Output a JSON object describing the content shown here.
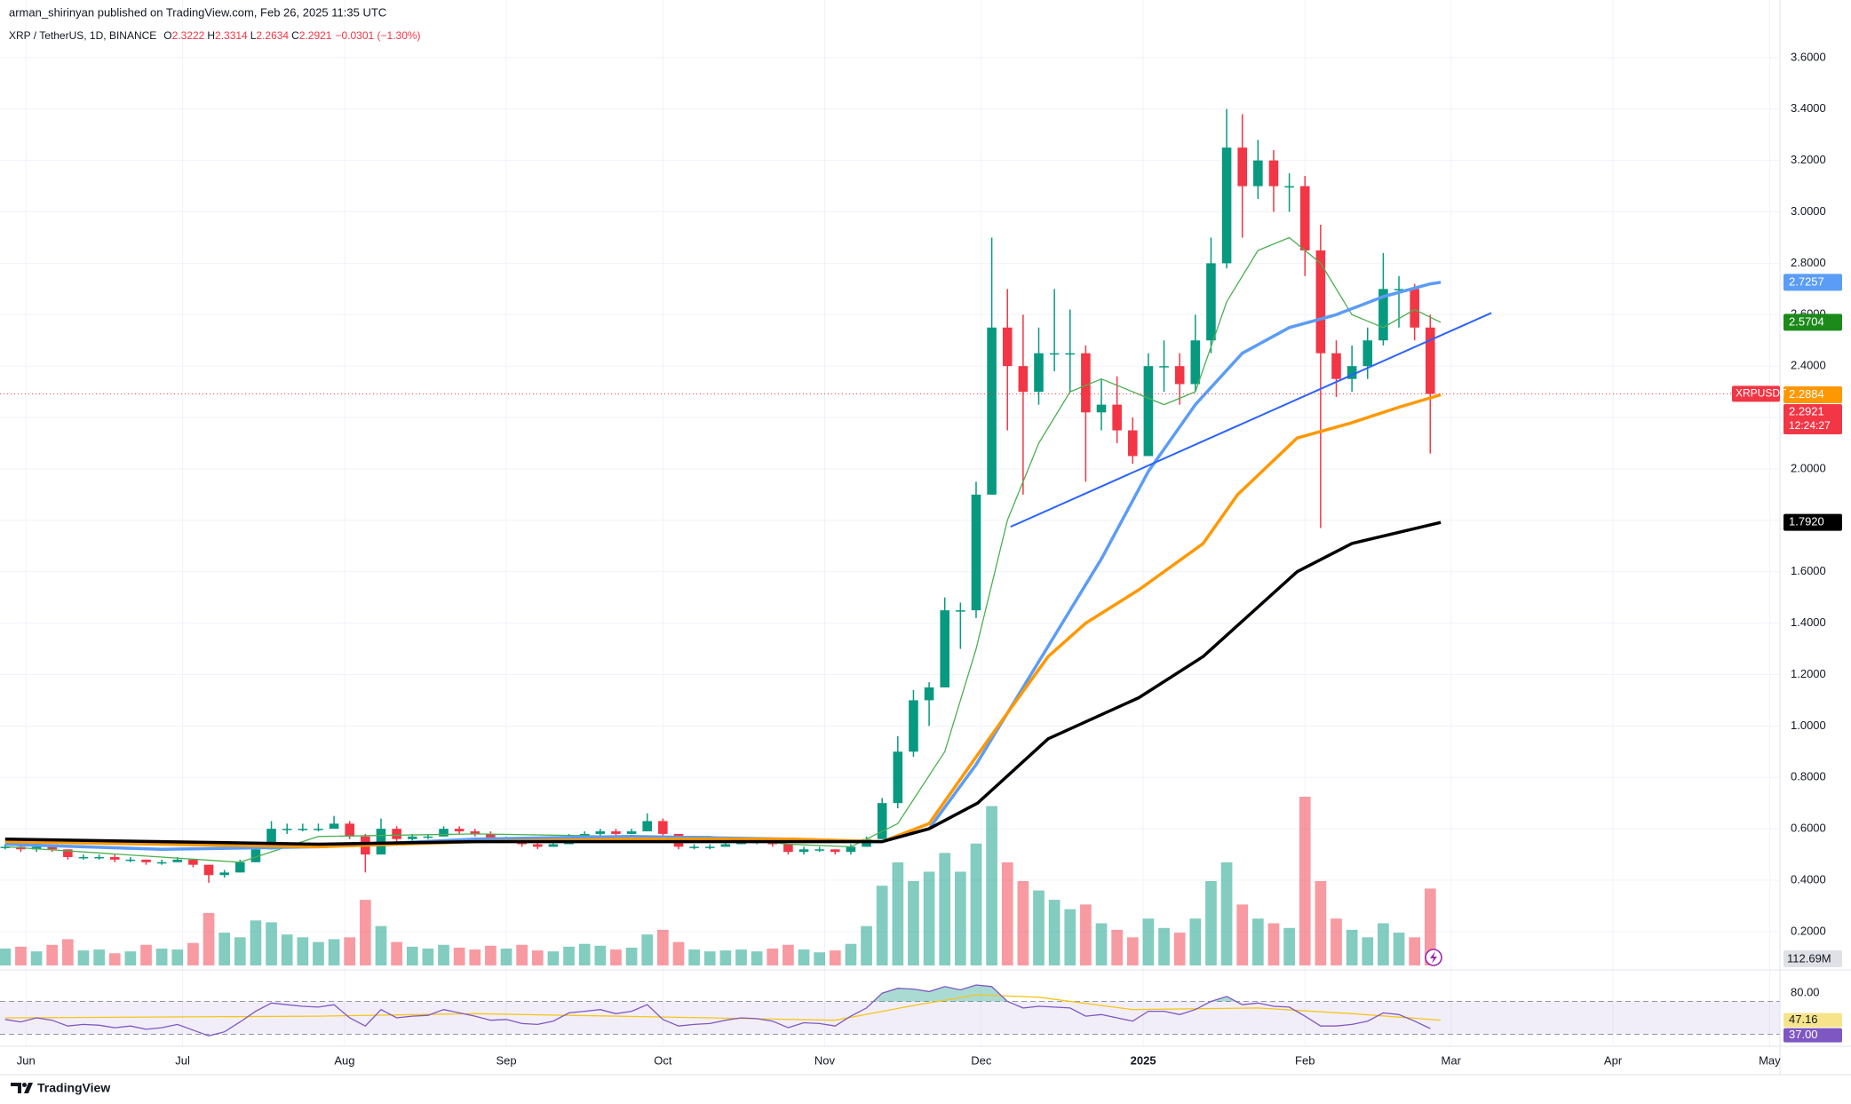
{
  "header": {
    "publisher_line": "arman_shirinyan published on TradingView.com, Feb 26, 2025 11:35 UTC"
  },
  "chart_data": {
    "type": "candlestick",
    "symbol_line": "XRP / TetherUS, 1D, BINANCE",
    "ohlc_legend": [
      {
        "label": "O",
        "value": "2.3222"
      },
      {
        "label": "H",
        "value": "2.3314"
      },
      {
        "label": "L",
        "value": "2.2634"
      },
      {
        "label": "C",
        "value": "2.2921"
      }
    ],
    "change": "−0.0301 (−1.30%)",
    "xlim": [
      -0.33,
      113.33
    ],
    "xticks": [
      {
        "value": 1.33,
        "label": "Jun"
      },
      {
        "value": 11.33,
        "label": "Jul"
      },
      {
        "value": 21.67,
        "label": "Aug"
      },
      {
        "value": 32,
        "label": "Sep"
      },
      {
        "value": 42,
        "label": "Oct"
      },
      {
        "value": 52.33,
        "label": "Nov"
      },
      {
        "value": 62.33,
        "label": "Dec"
      },
      {
        "value": 72.67,
        "label": "2025"
      },
      {
        "value": 83,
        "label": "Feb"
      },
      {
        "value": 92.33,
        "label": "Mar"
      },
      {
        "value": 102.67,
        "label": "Apr"
      },
      {
        "value": 112.67,
        "label": "May"
      }
    ],
    "ylim": [
      0.058,
      3.686
    ],
    "yticks": [
      {
        "value": 0.2,
        "label": "0.2000"
      },
      {
        "value": 0.4,
        "label": "0.4000"
      },
      {
        "value": 0.6,
        "label": "0.6000"
      },
      {
        "value": 0.8,
        "label": "0.8000"
      },
      {
        "value": 1.0,
        "label": "1.0000"
      },
      {
        "value": 1.2,
        "label": "1.2000"
      },
      {
        "value": 1.4,
        "label": "1.4000"
      },
      {
        "value": 1.6,
        "label": "1.6000"
      },
      {
        "value": 1.8,
        "label": "1.8000"
      },
      {
        "value": 2.0,
        "label": "2.0000"
      },
      {
        "value": 2.2,
        "label": "2.2000"
      },
      {
        "value": 2.4,
        "label": "2.4000"
      },
      {
        "value": 2.6,
        "label": "2.6000"
      },
      {
        "value": 2.8,
        "label": "2.8000"
      },
      {
        "value": 3.0,
        "label": "3.0000"
      },
      {
        "value": 3.2,
        "label": "3.2000"
      },
      {
        "value": 3.4,
        "label": "3.4000"
      },
      {
        "value": 3.6,
        "label": "3.6000"
      }
    ],
    "grid": true,
    "up_color": "#089981",
    "down_color": "#f23645",
    "candles": [
      [
        0.53,
        0.54,
        0.52,
        0.53
      ],
      [
        0.53,
        0.54,
        0.51,
        0.52
      ],
      [
        0.52,
        0.54,
        0.51,
        0.53
      ],
      [
        0.53,
        0.54,
        0.51,
        0.52
      ],
      [
        0.52,
        0.52,
        0.48,
        0.49
      ],
      [
        0.49,
        0.5,
        0.48,
        0.49
      ],
      [
        0.49,
        0.5,
        0.48,
        0.49
      ],
      [
        0.49,
        0.5,
        0.47,
        0.48
      ],
      [
        0.48,
        0.49,
        0.47,
        0.48
      ],
      [
        0.48,
        0.48,
        0.46,
        0.47
      ],
      [
        0.47,
        0.48,
        0.46,
        0.47
      ],
      [
        0.47,
        0.49,
        0.47,
        0.48
      ],
      [
        0.48,
        0.48,
        0.45,
        0.46
      ],
      [
        0.46,
        0.46,
        0.39,
        0.42
      ],
      [
        0.42,
        0.44,
        0.41,
        0.43
      ],
      [
        0.43,
        0.48,
        0.43,
        0.47
      ],
      [
        0.47,
        0.53,
        0.47,
        0.52
      ],
      [
        0.52,
        0.63,
        0.52,
        0.6
      ],
      [
        0.6,
        0.62,
        0.58,
        0.6
      ],
      [
        0.6,
        0.62,
        0.59,
        0.6
      ],
      [
        0.6,
        0.62,
        0.59,
        0.6
      ],
      [
        0.6,
        0.65,
        0.6,
        0.62
      ],
      [
        0.62,
        0.63,
        0.56,
        0.57
      ],
      [
        0.57,
        0.58,
        0.43,
        0.5
      ],
      [
        0.5,
        0.64,
        0.5,
        0.6
      ],
      [
        0.6,
        0.61,
        0.55,
        0.56
      ],
      [
        0.56,
        0.58,
        0.55,
        0.57
      ],
      [
        0.57,
        0.58,
        0.56,
        0.57
      ],
      [
        0.57,
        0.61,
        0.57,
        0.6
      ],
      [
        0.6,
        0.61,
        0.58,
        0.59
      ],
      [
        0.59,
        0.6,
        0.57,
        0.58
      ],
      [
        0.58,
        0.59,
        0.55,
        0.56
      ],
      [
        0.56,
        0.57,
        0.55,
        0.56
      ],
      [
        0.56,
        0.56,
        0.53,
        0.54
      ],
      [
        0.54,
        0.55,
        0.52,
        0.53
      ],
      [
        0.53,
        0.55,
        0.53,
        0.54
      ],
      [
        0.54,
        0.58,
        0.54,
        0.57
      ],
      [
        0.57,
        0.59,
        0.56,
        0.58
      ],
      [
        0.58,
        0.6,
        0.57,
        0.59
      ],
      [
        0.59,
        0.6,
        0.57,
        0.58
      ],
      [
        0.58,
        0.6,
        0.58,
        0.59
      ],
      [
        0.59,
        0.66,
        0.59,
        0.63
      ],
      [
        0.63,
        0.64,
        0.57,
        0.58
      ],
      [
        0.58,
        0.58,
        0.52,
        0.53
      ],
      [
        0.53,
        0.54,
        0.52,
        0.53
      ],
      [
        0.53,
        0.54,
        0.52,
        0.53
      ],
      [
        0.53,
        0.55,
        0.53,
        0.54
      ],
      [
        0.54,
        0.56,
        0.54,
        0.55
      ],
      [
        0.55,
        0.56,
        0.54,
        0.55
      ],
      [
        0.55,
        0.55,
        0.53,
        0.54
      ],
      [
        0.54,
        0.54,
        0.5,
        0.51
      ],
      [
        0.51,
        0.53,
        0.5,
        0.52
      ],
      [
        0.52,
        0.53,
        0.51,
        0.52
      ],
      [
        0.52,
        0.52,
        0.5,
        0.51
      ],
      [
        0.51,
        0.54,
        0.5,
        0.53
      ],
      [
        0.53,
        0.57,
        0.53,
        0.56
      ],
      [
        0.56,
        0.72,
        0.56,
        0.7
      ],
      [
        0.7,
        0.96,
        0.68,
        0.9
      ],
      [
        0.9,
        1.14,
        0.88,
        1.1
      ],
      [
        1.1,
        1.17,
        1.0,
        1.15
      ],
      [
        1.15,
        1.5,
        1.15,
        1.45
      ],
      [
        1.45,
        1.48,
        1.3,
        1.45
      ],
      [
        1.45,
        1.95,
        1.42,
        1.9
      ],
      [
        1.9,
        2.9,
        1.9,
        2.55
      ],
      [
        2.55,
        2.7,
        2.15,
        2.4
      ],
      [
        2.4,
        2.6,
        1.9,
        2.3
      ],
      [
        2.3,
        2.55,
        2.25,
        2.45
      ],
      [
        2.45,
        2.7,
        2.38,
        2.45
      ],
      [
        2.45,
        2.62,
        2.3,
        2.45
      ],
      [
        2.45,
        2.48,
        1.95,
        2.22
      ],
      [
        2.22,
        2.35,
        2.15,
        2.25
      ],
      [
        2.25,
        2.36,
        2.1,
        2.15
      ],
      [
        2.15,
        2.2,
        2.02,
        2.05
      ],
      [
        2.05,
        2.45,
        2.05,
        2.4
      ],
      [
        2.4,
        2.5,
        2.3,
        2.4
      ],
      [
        2.4,
        2.45,
        2.25,
        2.33
      ],
      [
        2.33,
        2.6,
        2.3,
        2.5
      ],
      [
        2.5,
        2.9,
        2.45,
        2.8
      ],
      [
        2.8,
        3.4,
        2.78,
        3.25
      ],
      [
        3.25,
        3.38,
        2.9,
        3.1
      ],
      [
        3.1,
        3.28,
        3.05,
        3.2
      ],
      [
        3.2,
        3.24,
        3.0,
        3.1
      ],
      [
        3.1,
        3.15,
        3.0,
        3.1
      ],
      [
        3.1,
        3.14,
        2.75,
        2.85
      ],
      [
        2.85,
        2.95,
        1.77,
        2.45
      ],
      [
        2.45,
        2.5,
        2.28,
        2.35
      ],
      [
        2.35,
        2.48,
        2.3,
        2.4
      ],
      [
        2.4,
        2.55,
        2.35,
        2.5
      ],
      [
        2.5,
        2.84,
        2.48,
        2.7
      ],
      [
        2.7,
        2.75,
        2.55,
        2.7
      ],
      [
        2.7,
        2.72,
        2.5,
        2.55
      ],
      [
        2.55,
        2.6,
        2.06,
        2.2921
      ]
    ],
    "volume": {
      "values": [
        180,
        200,
        150,
        220,
        280,
        160,
        170,
        130,
        150,
        220,
        180,
        170,
        240,
        560,
        350,
        300,
        480,
        460,
        330,
        300,
        250,
        280,
        300,
        700,
        420,
        250,
        200,
        180,
        220,
        190,
        170,
        210,
        180,
        220,
        160,
        150,
        200,
        230,
        210,
        170,
        190,
        330,
        380,
        250,
        170,
        150,
        160,
        170,
        150,
        180,
        220,
        170,
        140,
        160,
        230,
        420,
        850,
        1100,
        900,
        1000,
        1200,
        1000,
        1300,
        1700,
        1100,
        900,
        800,
        700,
        600,
        650,
        450,
        380,
        300,
        500,
        400,
        350,
        500,
        900,
        1100,
        650,
        500,
        450,
        400,
        1800,
        900,
        500,
        380,
        300,
        450,
        350,
        300,
        820
      ],
      "last_label": "112.69M"
    },
    "moving_averages": [
      {
        "color": "#4caf50",
        "line_width": 1.3,
        "x": [
          0,
          15,
          20,
          30,
          40,
          45,
          50,
          54,
          57,
          60,
          62,
          64,
          66,
          68,
          70,
          72,
          74,
          76,
          78,
          80,
          82,
          84,
          86,
          88,
          90,
          91.67
        ],
        "values": [
          0.53,
          0.47,
          0.57,
          0.58,
          0.57,
          0.57,
          0.54,
          0.53,
          0.62,
          0.9,
          1.3,
          1.8,
          2.1,
          2.3,
          2.35,
          2.3,
          2.25,
          2.3,
          2.65,
          2.85,
          2.9,
          2.8,
          2.6,
          2.55,
          2.62,
          2.5704
        ],
        "last_label": "2.5704",
        "tag_color": "#1b8a1b"
      },
      {
        "color": "#5b9cf6",
        "line_width": 3.5,
        "x": [
          0,
          10,
          20,
          30,
          40,
          50,
          56,
          59,
          62,
          64,
          67,
          70,
          73,
          76,
          79,
          82,
          85,
          88,
          91,
          91.67
        ],
        "values": [
          0.54,
          0.52,
          0.53,
          0.56,
          0.57,
          0.56,
          0.55,
          0.6,
          0.85,
          1.05,
          1.35,
          1.65,
          1.99,
          2.25,
          2.45,
          2.55,
          2.6,
          2.67,
          2.72,
          2.7257
        ],
        "last_label": "2.7257",
        "tag_color": "#5b9cf6"
      },
      {
        "color": "#ff9800",
        "line_width": 3.5,
        "x": [
          0,
          10,
          20,
          30,
          40,
          50,
          56,
          59,
          62,
          64,
          66.6,
          69,
          72.4,
          76.5,
          78.7,
          82.5,
          86,
          89,
          91.67
        ],
        "values": [
          0.55,
          0.54,
          0.53,
          0.55,
          0.56,
          0.56,
          0.55,
          0.62,
          0.88,
          1.05,
          1.27,
          1.4,
          1.53,
          1.71,
          1.9,
          2.12,
          2.18,
          2.24,
          2.2884
        ],
        "last_label": "2.2884",
        "tag_color": "#ff9800"
      },
      {
        "color": "#000000",
        "line_width": 3.5,
        "x": [
          0,
          10,
          20,
          30,
          40,
          50,
          56,
          59,
          62.1,
          66.6,
          72.4,
          76.5,
          82.5,
          86,
          91.67
        ],
        "values": [
          0.56,
          0.55,
          0.54,
          0.55,
          0.55,
          0.55,
          0.55,
          0.6,
          0.7,
          0.95,
          1.11,
          1.27,
          1.6,
          1.71,
          1.792
        ],
        "last_label": "1.7920",
        "tag_color": "#000000"
      }
    ],
    "trendline": {
      "color": "#2962ff",
      "x": [
        64.2,
        94.9
      ],
      "values": [
        1.775,
        2.607
      ]
    },
    "last_price": {
      "symbol": "XRPUSDT",
      "value": 2.2921,
      "countdown": "12:24:27"
    },
    "rsi": {
      "ylim": [
        18.6,
        98.6
      ],
      "yticks": [
        {
          "value": 80,
          "label": "80.00"
        }
      ],
      "bands": [
        70,
        30
      ],
      "color": "#7e57c2",
      "values": [
        48,
        45,
        50,
        47,
        40,
        42,
        41,
        38,
        40,
        36,
        38,
        42,
        35,
        28,
        33,
        45,
        58,
        68,
        66,
        64,
        63,
        66,
        50,
        40,
        60,
        50,
        52,
        53,
        60,
        56,
        52,
        47,
        48,
        43,
        42,
        46,
        56,
        58,
        60,
        55,
        58,
        66,
        48,
        40,
        42,
        43,
        47,
        50,
        49,
        46,
        38,
        44,
        43,
        40,
        52,
        62,
        80,
        86,
        85,
        82,
        88,
        84,
        90,
        88,
        70,
        62,
        64,
        63,
        62,
        52,
        54,
        50,
        46,
        58,
        58,
        54,
        60,
        70,
        76,
        66,
        68,
        64,
        63,
        52,
        40,
        40,
        42,
        46,
        56,
        54,
        46,
        37
      ],
      "last_label": "37.00",
      "ma": {
        "color": "#f5c518",
        "x": [
          0,
          20,
          30,
          45,
          53,
          58,
          62,
          66,
          72,
          80,
          86,
          91.67
        ],
        "values": [
          50,
          52,
          55,
          50,
          47,
          65,
          78,
          75,
          60,
          62,
          55,
          47.16
        ]
      }
    }
  },
  "footer": {
    "brand": "TradingView"
  }
}
